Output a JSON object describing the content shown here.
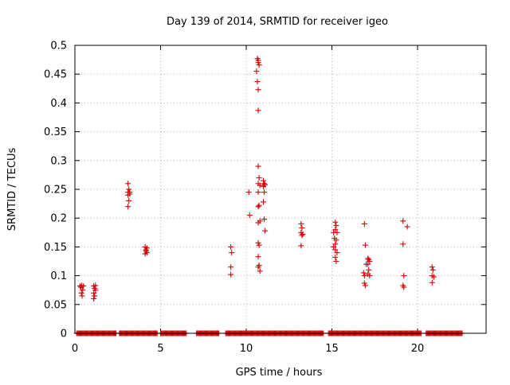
{
  "chart_data": {
    "type": "scatter",
    "title": "Day 139 of 2014, SRMTID for receiver igeo",
    "xlabel": "GPS time / hours",
    "ylabel": "SRMTID / TECUs",
    "xlim": [
      0,
      24
    ],
    "ylim": [
      0,
      0.5
    ],
    "grid": true,
    "marker": "+",
    "color": "#d40000",
    "x_ticks": [
      0,
      5,
      10,
      15,
      20
    ],
    "x_tick_labels": [
      "0",
      "5",
      "10",
      "15",
      "20"
    ],
    "y_ticks": [
      0,
      0.05,
      0.1,
      0.15,
      0.2,
      0.25,
      0.3,
      0.35,
      0.4,
      0.45,
      0.5
    ],
    "y_tick_labels": [
      "0",
      "0.05",
      "0.1",
      "0.15",
      "0.2",
      "0.25",
      "0.3",
      "0.35",
      "0.4",
      "0.45",
      "0.5"
    ],
    "zero_segments": [
      [
        0.1,
        2.4
      ],
      [
        2.6,
        4.8
      ],
      [
        5.0,
        6.5
      ],
      [
        7.1,
        8.4
      ],
      [
        8.8,
        14.5
      ],
      [
        14.8,
        20.2
      ],
      [
        20.5,
        22.6
      ]
    ],
    "points": [
      [
        0.3,
        0.082
      ],
      [
        0.35,
        0.08
      ],
      [
        0.4,
        0.083
      ],
      [
        0.45,
        0.075
      ],
      [
        0.5,
        0.082
      ],
      [
        0.38,
        0.07
      ],
      [
        0.42,
        0.065
      ],
      [
        1.1,
        0.082
      ],
      [
        1.15,
        0.078
      ],
      [
        1.2,
        0.083
      ],
      [
        1.1,
        0.07
      ],
      [
        1.15,
        0.065
      ],
      [
        1.1,
        0.06
      ],
      [
        1.2,
        0.075
      ],
      [
        3.1,
        0.26
      ],
      [
        3.15,
        0.25
      ],
      [
        3.1,
        0.245
      ],
      [
        3.2,
        0.245
      ],
      [
        3.1,
        0.24
      ],
      [
        3.15,
        0.23
      ],
      [
        3.1,
        0.22
      ],
      [
        3.2,
        0.242
      ],
      [
        4.1,
        0.15
      ],
      [
        4.15,
        0.145
      ],
      [
        4.2,
        0.14
      ],
      [
        4.1,
        0.138
      ],
      [
        4.15,
        0.143
      ],
      [
        4.2,
        0.148
      ],
      [
        9.1,
        0.15
      ],
      [
        9.15,
        0.14
      ],
      [
        9.1,
        0.115
      ],
      [
        9.1,
        0.102
      ],
      [
        10.15,
        0.245
      ],
      [
        10.2,
        0.205
      ],
      [
        10.65,
        0.477
      ],
      [
        10.7,
        0.474
      ],
      [
        10.7,
        0.47
      ],
      [
        10.75,
        0.466
      ],
      [
        10.6,
        0.455
      ],
      [
        10.65,
        0.437
      ],
      [
        10.7,
        0.423
      ],
      [
        10.7,
        0.387
      ],
      [
        10.7,
        0.29
      ],
      [
        10.75,
        0.27
      ],
      [
        10.7,
        0.26
      ],
      [
        10.8,
        0.257
      ],
      [
        10.7,
        0.245
      ],
      [
        10.75,
        0.222
      ],
      [
        10.7,
        0.22
      ],
      [
        10.8,
        0.195
      ],
      [
        10.7,
        0.192
      ],
      [
        10.7,
        0.157
      ],
      [
        10.75,
        0.153
      ],
      [
        10.7,
        0.133
      ],
      [
        10.75,
        0.118
      ],
      [
        10.7,
        0.115
      ],
      [
        10.8,
        0.108
      ],
      [
        11.0,
        0.265
      ],
      [
        11.05,
        0.26
      ],
      [
        11.1,
        0.258
      ],
      [
        11.0,
        0.255
      ],
      [
        11.05,
        0.245
      ],
      [
        11.0,
        0.228
      ],
      [
        11.05,
        0.198
      ],
      [
        11.1,
        0.178
      ],
      [
        13.2,
        0.19
      ],
      [
        13.25,
        0.183
      ],
      [
        13.2,
        0.175
      ],
      [
        13.3,
        0.172
      ],
      [
        13.25,
        0.17
      ],
      [
        13.2,
        0.152
      ],
      [
        15.1,
        0.175
      ],
      [
        15.2,
        0.193
      ],
      [
        15.25,
        0.187
      ],
      [
        15.2,
        0.18
      ],
      [
        15.3,
        0.175
      ],
      [
        15.15,
        0.165
      ],
      [
        15.25,
        0.162
      ],
      [
        15.2,
        0.155
      ],
      [
        15.1,
        0.15
      ],
      [
        15.2,
        0.145
      ],
      [
        15.3,
        0.14
      ],
      [
        15.2,
        0.132
      ],
      [
        15.25,
        0.125
      ],
      [
        16.9,
        0.19
      ],
      [
        16.95,
        0.153
      ],
      [
        16.85,
        0.105
      ],
      [
        16.9,
        0.1
      ],
      [
        16.9,
        0.087
      ],
      [
        16.95,
        0.083
      ],
      [
        17.1,
        0.13
      ],
      [
        17.15,
        0.128
      ],
      [
        17.2,
        0.125
      ],
      [
        17.1,
        0.12
      ],
      [
        17.15,
        0.11
      ],
      [
        17.1,
        0.103
      ],
      [
        17.2,
        0.1
      ],
      [
        17.0,
        0.12
      ],
      [
        19.15,
        0.195
      ],
      [
        19.4,
        0.185
      ],
      [
        19.15,
        0.155
      ],
      [
        19.2,
        0.1
      ],
      [
        19.15,
        0.083
      ],
      [
        19.2,
        0.08
      ],
      [
        20.85,
        0.115
      ],
      [
        20.9,
        0.11
      ],
      [
        20.85,
        0.1
      ],
      [
        20.95,
        0.098
      ],
      [
        20.85,
        0.088
      ]
    ]
  }
}
